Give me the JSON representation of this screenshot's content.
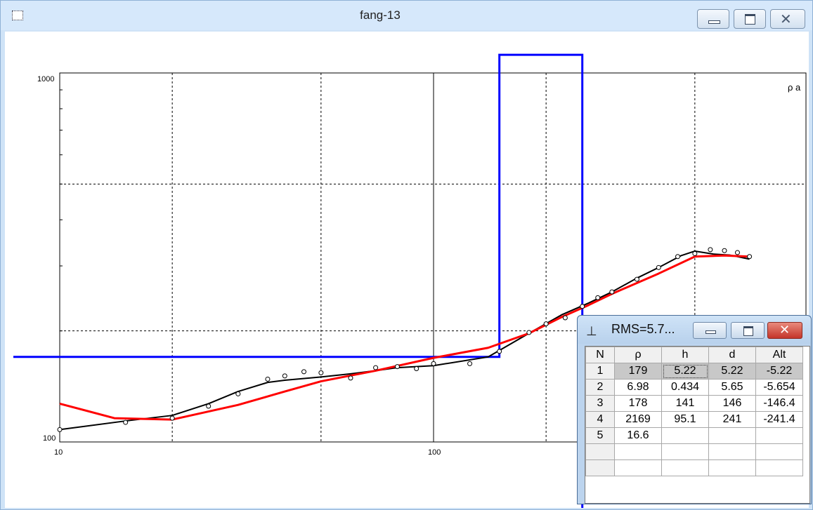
{
  "window": {
    "title": "fang-13",
    "icon": "document-icon",
    "buttons": {
      "minimize": "minimize-icon",
      "maximize": "maximize-icon",
      "close": "close-icon"
    }
  },
  "plot": {
    "y_top_label": "1000",
    "y_bottom_label": "100",
    "x_label_10": "10",
    "x_label_100": "100",
    "rho_label": "ρ a"
  },
  "chart_data": {
    "type": "line",
    "x_scale": "log",
    "y_scale": "log",
    "xlim": [
      10,
      1000
    ],
    "ylim": [
      100,
      1000
    ],
    "grid": true,
    "observed_points": {
      "x": [
        10,
        15,
        20,
        25,
        30,
        36,
        40,
        45,
        50,
        60,
        70,
        80,
        90,
        100,
        125,
        150,
        180,
        200,
        225,
        250,
        275,
        300,
        350,
        400,
        450,
        500,
        550,
        600,
        650,
        700
      ],
      "y": [
        108,
        113,
        116,
        125,
        135,
        148,
        151,
        155,
        154,
        149,
        159,
        160,
        158,
        163,
        163,
        176,
        198,
        209,
        217,
        233,
        246,
        255,
        276,
        297,
        318,
        324,
        332,
        330,
        326,
        318
      ]
    },
    "series": [
      {
        "color": "#000000",
        "x": [
          10,
          15,
          20,
          25,
          30,
          36,
          40,
          50,
          60,
          70,
          80,
          100,
          140,
          180,
          220,
          260,
          300,
          350,
          400,
          460,
          500,
          560,
          620,
          700
        ],
        "y": [
          108,
          114,
          118,
          127,
          137,
          145,
          147,
          150,
          153,
          156,
          159,
          161,
          170,
          197,
          221,
          238,
          255,
          278,
          297,
          320,
          329,
          323,
          321,
          313
        ]
      },
      {
        "color": "#ff0000",
        "x": [
          10,
          14,
          20,
          30,
          40,
          50,
          70,
          100,
          140,
          180,
          220,
          260,
          300,
          400,
          500,
          600,
          700
        ],
        "y": [
          127,
          116,
          115,
          126,
          137,
          146,
          156,
          169,
          180,
          197,
          218,
          235,
          252,
          286,
          318,
          320,
          318
        ]
      },
      {
        "color": "#0000ff",
        "type": "step",
        "x": [
          2.8,
          150,
          150,
          250,
          250
        ],
        "y": [
          170,
          170,
          1120,
          1120,
          60
        ]
      }
    ]
  },
  "subwindow": {
    "icon": "layer-icon",
    "icon_glyph": "⊥",
    "caption": "RMS=5.7...",
    "min_glyph": "",
    "max_glyph": "",
    "close_glyph": "✕",
    "table": {
      "headers": [
        "N",
        "ρ",
        "h",
        "d",
        "Alt"
      ],
      "rows": [
        [
          "1",
          "179",
          "5.22",
          "5.22",
          "-5.22"
        ],
        [
          "2",
          "6.98",
          "0.434",
          "5.65",
          "-5.654"
        ],
        [
          "3",
          "178",
          "141",
          "146",
          "-146.4"
        ],
        [
          "4",
          "2169",
          "95.1",
          "241",
          "-241.4"
        ],
        [
          "5",
          "16.6",
          "",
          "",
          ""
        ],
        [
          "",
          "",
          "",
          "",
          ""
        ],
        [
          "",
          "",
          "",
          "",
          ""
        ]
      ]
    }
  }
}
